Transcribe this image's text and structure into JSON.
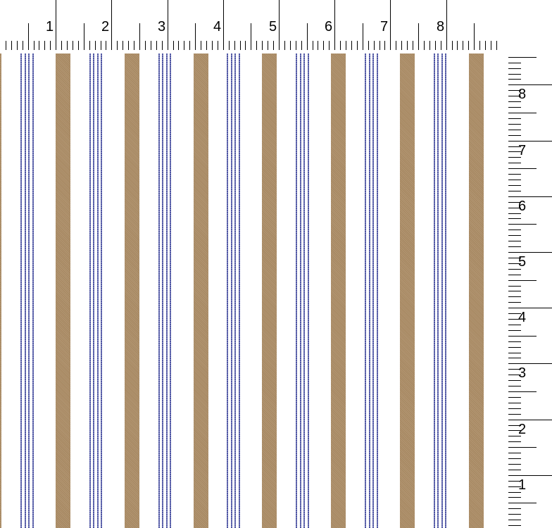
{
  "top_ruler": {
    "labels": [
      "1",
      "2",
      "3",
      "4",
      "5",
      "6",
      "7",
      "8"
    ]
  },
  "side_ruler": {
    "labels": [
      "8",
      "7",
      "6",
      "5",
      "4",
      "3",
      "2",
      "1"
    ]
  },
  "fabric": {
    "pattern": "vertical stripes",
    "colors": {
      "background": "#ffffff",
      "wide_stripe": "#a88a65",
      "pinstripe": "#5157a3"
    }
  }
}
